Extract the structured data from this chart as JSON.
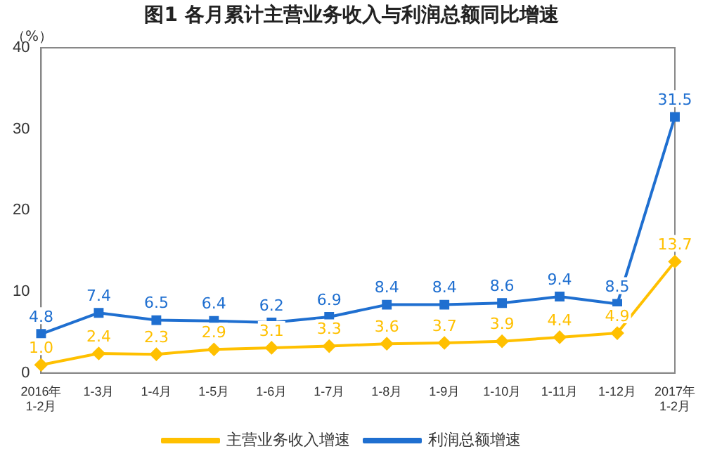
{
  "chart_data": {
    "type": "line",
    "title": "图1  各月累计主营业务收入与利润总额同比增速",
    "ylabel": "（%）",
    "categories": [
      "2016年\n1-2月",
      "1-3月",
      "1-4月",
      "1-5月",
      "1-6月",
      "1-7月",
      "1-8月",
      "1-9月",
      "1-10月",
      "1-11月",
      "1-12月",
      "2017年\n1-2月"
    ],
    "series": [
      {
        "name": "主营业务收入增速",
        "color": "#ffc000",
        "marker": "diamond",
        "values": [
          1.0,
          2.4,
          2.3,
          2.9,
          3.1,
          3.3,
          3.6,
          3.7,
          3.9,
          4.4,
          4.9,
          13.7
        ],
        "value_labels": [
          "1.0",
          "2.4",
          "2.3",
          "2.9",
          "3.1",
          "3.3",
          "3.6",
          "3.7",
          "3.9",
          "4.4",
          "4.9",
          "13.7"
        ]
      },
      {
        "name": "利润总额增速",
        "color": "#1f6fd0",
        "marker": "square",
        "values": [
          4.8,
          7.4,
          6.5,
          6.4,
          6.2,
          6.9,
          8.4,
          8.4,
          8.6,
          9.4,
          8.5,
          31.5
        ],
        "value_labels": [
          "4.8",
          "7.4",
          "6.5",
          "6.4",
          "6.2",
          "6.9",
          "8.4",
          "8.4",
          "8.6",
          "9.4",
          "8.5",
          "31.5"
        ]
      }
    ],
    "ylim": [
      0,
      40
    ],
    "yticks": [
      0,
      10,
      20,
      30,
      40
    ],
    "grid": false,
    "legend": "bottom",
    "line_style": "solid"
  }
}
